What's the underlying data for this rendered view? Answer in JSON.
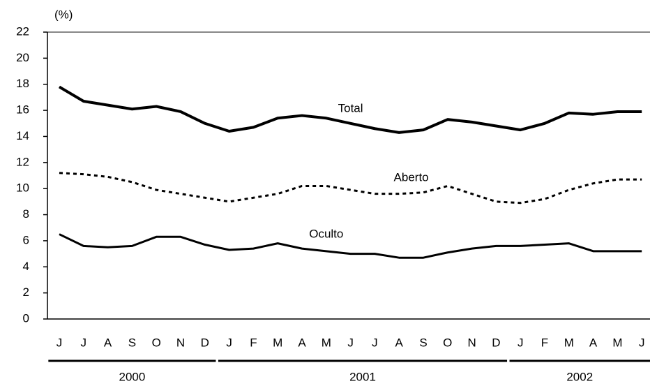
{
  "chart_data": {
    "type": "line",
    "y_label": "(%)",
    "categories": [
      "J",
      "J",
      "A",
      "S",
      "O",
      "N",
      "D",
      "J",
      "F",
      "M",
      "A",
      "M",
      "J",
      "J",
      "A",
      "S",
      "O",
      "N",
      "D",
      "J",
      "F",
      "M",
      "A",
      "M",
      "J"
    ],
    "x_groups": [
      {
        "label": "2000",
        "first": 0,
        "last": 6
      },
      {
        "label": "2001",
        "first": 7,
        "last": 18
      },
      {
        "label": "2002",
        "first": 19,
        "last": 24
      }
    ],
    "series": [
      {
        "name": "Total",
        "color": "#000000",
        "line_style": "solid",
        "line_width": 4,
        "values": [
          17.8,
          16.7,
          16.4,
          16.1,
          16.3,
          15.9,
          15.0,
          14.4,
          14.7,
          15.4,
          15.6,
          15.4,
          15.0,
          14.6,
          14.3,
          14.5,
          15.3,
          15.1,
          14.8,
          14.5,
          15.0,
          15.8,
          15.7,
          15.9,
          15.9
        ]
      },
      {
        "name": "Aberto",
        "color": "#000000",
        "line_style": "dashed",
        "line_width": 3,
        "values": [
          11.2,
          11.1,
          10.9,
          10.5,
          9.9,
          9.6,
          9.3,
          9.0,
          9.3,
          9.6,
          10.2,
          10.2,
          9.9,
          9.6,
          9.6,
          9.7,
          10.2,
          9.6,
          9.0,
          8.9,
          9.2,
          9.9,
          10.4,
          10.7,
          10.7
        ]
      },
      {
        "name": "Oculto",
        "color": "#000000",
        "line_style": "solid",
        "line_width": 3,
        "values": [
          6.5,
          5.6,
          5.5,
          5.6,
          6.3,
          6.3,
          5.7,
          5.3,
          5.4,
          5.8,
          5.4,
          5.2,
          5.0,
          5.0,
          4.7,
          4.7,
          5.1,
          5.4,
          5.6,
          5.6,
          5.7,
          5.8,
          5.2,
          5.2,
          5.2
        ]
      }
    ],
    "ylim": [
      0,
      22
    ],
    "yticks": [
      0,
      2,
      4,
      6,
      8,
      10,
      12,
      14,
      16,
      18,
      20,
      22
    ],
    "grid": false
  }
}
